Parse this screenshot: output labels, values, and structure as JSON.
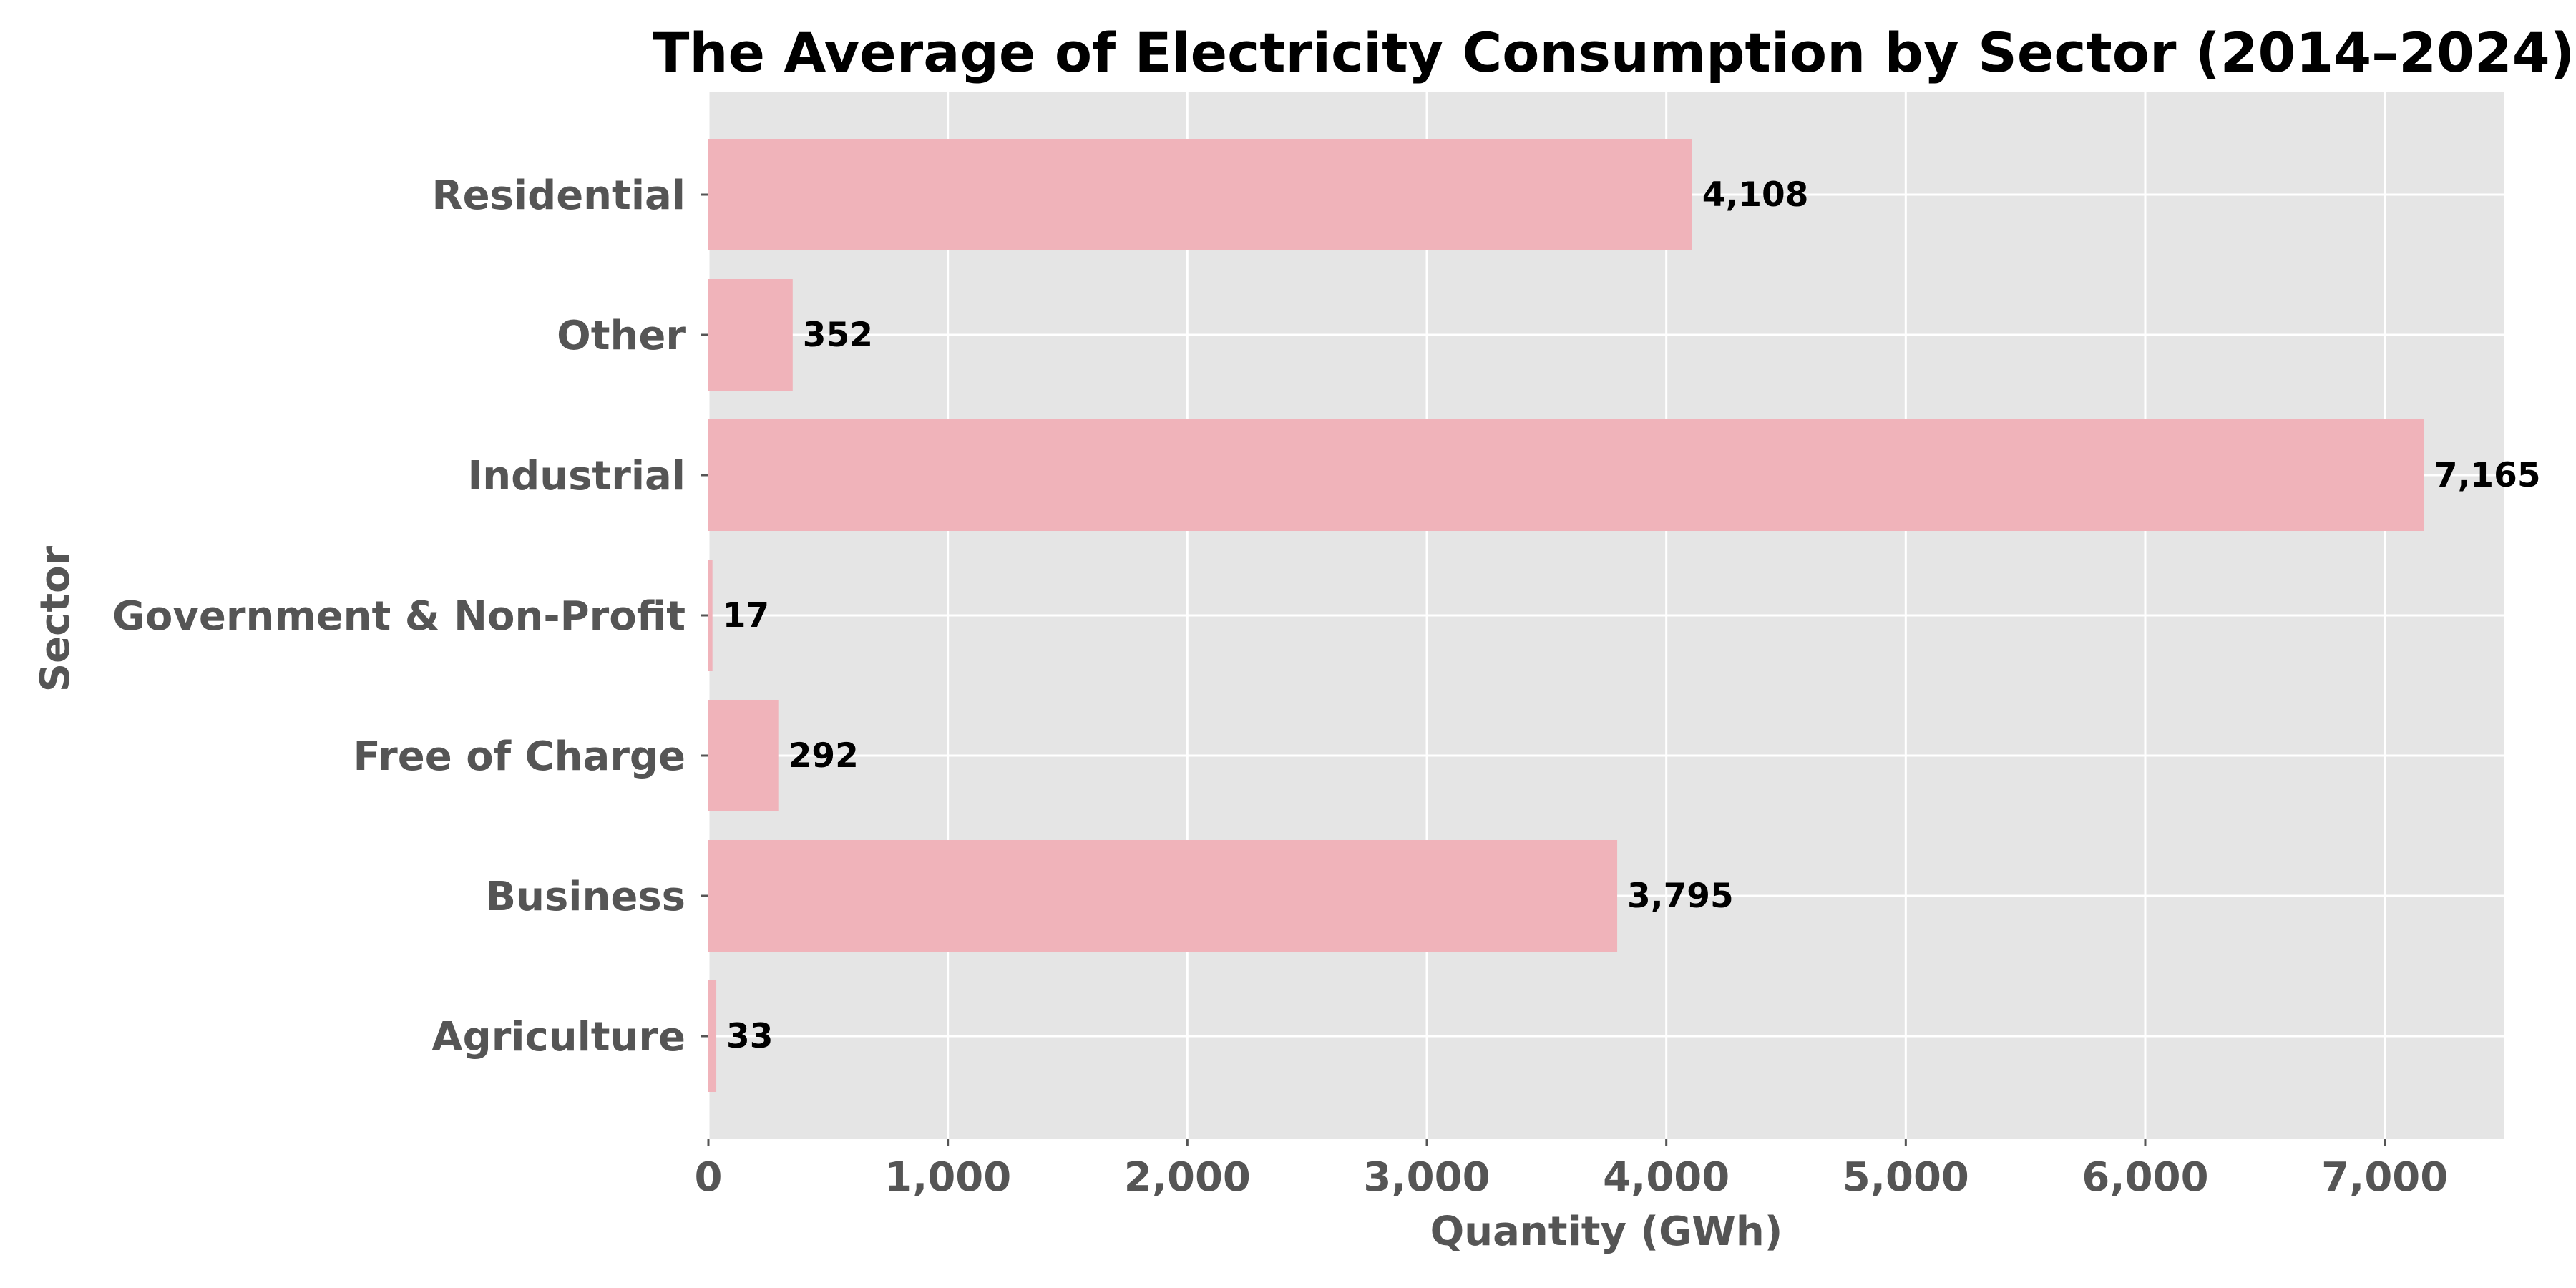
{
  "chart_data": {
    "type": "bar",
    "orientation": "horizontal",
    "title": "The Average of Electricity Consumption by Sector (2014–2024)",
    "xlabel": "Quantity (GWh)",
    "ylabel": "Sector",
    "categories": [
      "Residential",
      "Other",
      "Industrial",
      "Government & Non-Profit",
      "Free of Charge",
      "Business",
      "Agriculture"
    ],
    "values": [
      4108,
      352,
      7165,
      17,
      292,
      3795,
      33
    ],
    "value_labels": [
      "4,108",
      "352",
      "7,165",
      "17",
      "292",
      "3,795",
      "33"
    ],
    "xlim": [
      0,
      7500
    ],
    "xticks": [
      0,
      1000,
      2000,
      3000,
      4000,
      5000,
      6000,
      7000
    ],
    "xtick_labels": [
      "0",
      "1,000",
      "2,000",
      "3,000",
      "4,000",
      "5,000",
      "6,000",
      "7,000"
    ],
    "grid": true,
    "legend": "none",
    "colors": {
      "bar": "#f0b3ba",
      "plot_background": "#e5e5e5",
      "grid": "#ffffff",
      "tick_text": "#555555",
      "title_text": "#000000",
      "data_label_text": "#000000"
    }
  }
}
